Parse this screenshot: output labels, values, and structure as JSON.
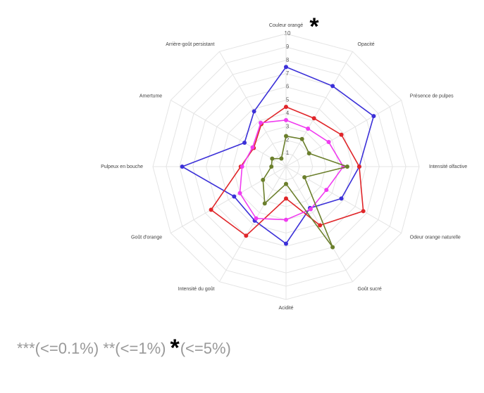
{
  "chart_data": {
    "type": "radar",
    "categories": [
      "Couleur orangé",
      "Opacité",
      "Présence de pulpes",
      "Intensité olfactive",
      "Odeur orange naturelle",
      "Goût sucré",
      "Acidité",
      "Intensité du goût",
      "Goût d'orange",
      "Pulpeux en bouche",
      "Amertume",
      "Arrière-goût persistant"
    ],
    "series": [
      {
        "color": "#3b30d8",
        "values": [
          7.5,
          7.0,
          7.6,
          5.5,
          4.8,
          3.6,
          5.8,
          4.7,
          4.5,
          7.8,
          3.6,
          4.8
        ]
      },
      {
        "color": "#e0262a",
        "values": [
          4.5,
          4.2,
          4.8,
          5.5,
          6.7,
          5.1,
          2.4,
          6.0,
          6.5,
          3.4,
          2.8,
          3.7
        ]
      },
      {
        "color": "#f03cf0",
        "values": [
          3.5,
          3.3,
          3.7,
          4.3,
          3.5,
          3.7,
          4.0,
          4.5,
          4.0,
          3.3,
          2.9,
          3.8
        ]
      },
      {
        "color": "#6b7f2c",
        "values": [
          2.3,
          2.4,
          2.0,
          4.6,
          1.6,
          7.0,
          1.3,
          3.2,
          2.0,
          1.1,
          1.2,
          0.7
        ]
      }
    ],
    "rlim": [
      0,
      10
    ],
    "rticks": [
      1,
      2,
      3,
      4,
      5,
      6,
      7,
      8,
      9,
      10
    ],
    "grid": true,
    "annotation": "*",
    "footnote": [
      "***(<=0.1%)",
      "**(<=1%)",
      "*",
      "(<=5%)"
    ]
  }
}
